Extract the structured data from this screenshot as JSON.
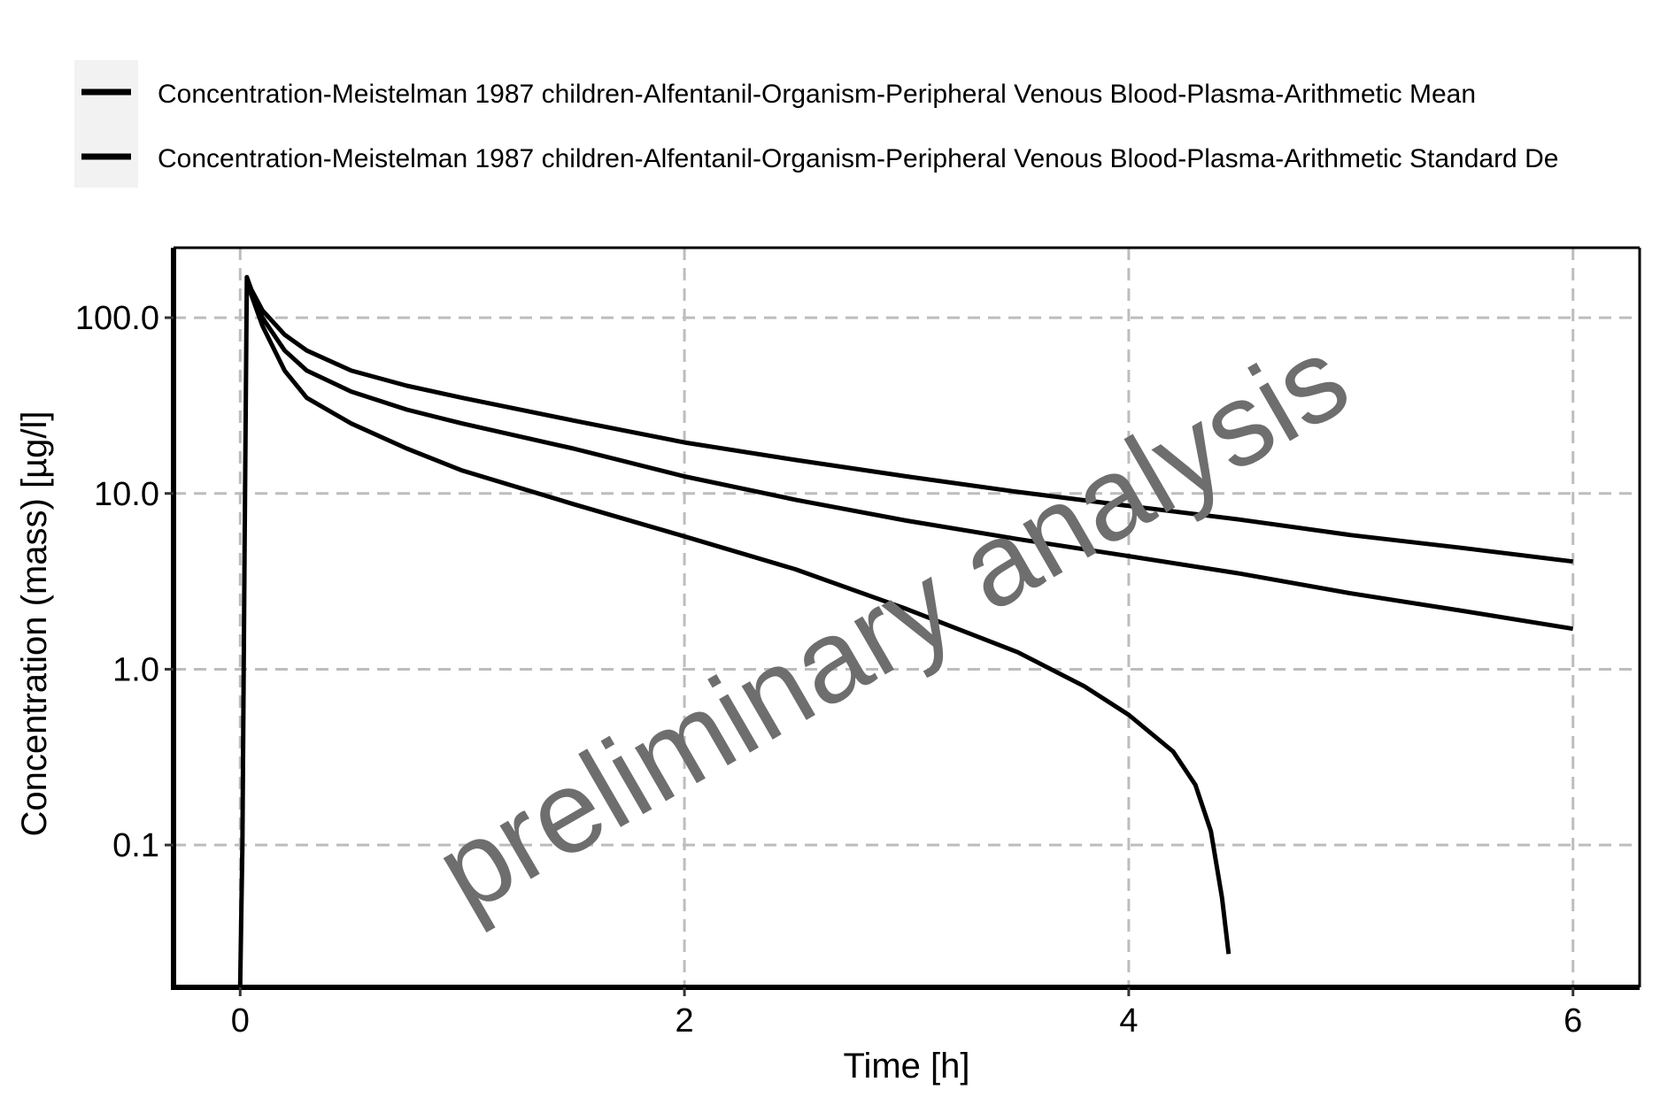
{
  "legend": {
    "items": [
      {
        "label": "Concentration-Meistelman 1987 children-Alfentanil-Organism-Peripheral Venous Blood-Plasma-Arithmetic Mean"
      },
      {
        "label": "Concentration-Meistelman 1987 children-Alfentanil-Organism-Peripheral Venous Blood-Plasma-Arithmetic Standard De"
      }
    ]
  },
  "watermark": "preliminary analysis",
  "chart_data": {
    "type": "line",
    "xlabel": "Time [h]",
    "ylabel": "Concentration (mass) [µg/l]",
    "xlim": [
      -0.3,
      6.3
    ],
    "ylim": [
      0.0155,
      250
    ],
    "yscale": "log",
    "grid": true,
    "legend_position": "top",
    "xticks": [
      0,
      2,
      4,
      6
    ],
    "xtick_labels": [
      "0",
      "2",
      "4",
      "6"
    ],
    "yticks": [
      0.1,
      1,
      10,
      100
    ],
    "ytick_labels": [
      "0.1",
      "1.0",
      "10.0",
      "100.0"
    ],
    "series": [
      {
        "values": [
          [
            0,
            0.016
          ],
          [
            0.01,
            0.1
          ],
          [
            0.02,
            5
          ],
          [
            0.03,
            170
          ],
          [
            0.05,
            145
          ],
          [
            0.1,
            110
          ],
          [
            0.2,
            80
          ],
          [
            0.3,
            65
          ],
          [
            0.5,
            50
          ],
          [
            0.75,
            41
          ],
          [
            1,
            35
          ],
          [
            1.5,
            26
          ],
          [
            2,
            19.5
          ],
          [
            2.5,
            15.5
          ],
          [
            3,
            12.5
          ],
          [
            3.5,
            10.2
          ],
          [
            4,
            8.5
          ],
          [
            4.5,
            7.1
          ],
          [
            5,
            5.8
          ],
          [
            5.5,
            4.9
          ],
          [
            6,
            4.1
          ]
        ]
      },
      {
        "values": [
          [
            0.03,
            170
          ],
          [
            0.05,
            140
          ],
          [
            0.1,
            100
          ],
          [
            0.2,
            65
          ],
          [
            0.3,
            50
          ],
          [
            0.5,
            38
          ],
          [
            0.75,
            30
          ],
          [
            1,
            25
          ],
          [
            1.5,
            18
          ],
          [
            2,
            12.5
          ],
          [
            2.5,
            9.2
          ],
          [
            3,
            7
          ],
          [
            3.5,
            5.5
          ],
          [
            4,
            4.4
          ],
          [
            4.5,
            3.5
          ],
          [
            5,
            2.7
          ],
          [
            5.5,
            2.15
          ],
          [
            6,
            1.7
          ]
        ]
      },
      {
        "values": [
          [
            0.03,
            170
          ],
          [
            0.05,
            135
          ],
          [
            0.1,
            90
          ],
          [
            0.2,
            50
          ],
          [
            0.3,
            35
          ],
          [
            0.5,
            25
          ],
          [
            0.75,
            18
          ],
          [
            1,
            13.5
          ],
          [
            1.5,
            8.7
          ],
          [
            2,
            5.7
          ],
          [
            2.5,
            3.7
          ],
          [
            3,
            2.2
          ],
          [
            3.5,
            1.25
          ],
          [
            3.8,
            0.8
          ],
          [
            4,
            0.55
          ],
          [
            4.2,
            0.34
          ],
          [
            4.3,
            0.22
          ],
          [
            4.37,
            0.12
          ],
          [
            4.42,
            0.05
          ],
          [
            4.45,
            0.024
          ]
        ]
      }
    ]
  }
}
